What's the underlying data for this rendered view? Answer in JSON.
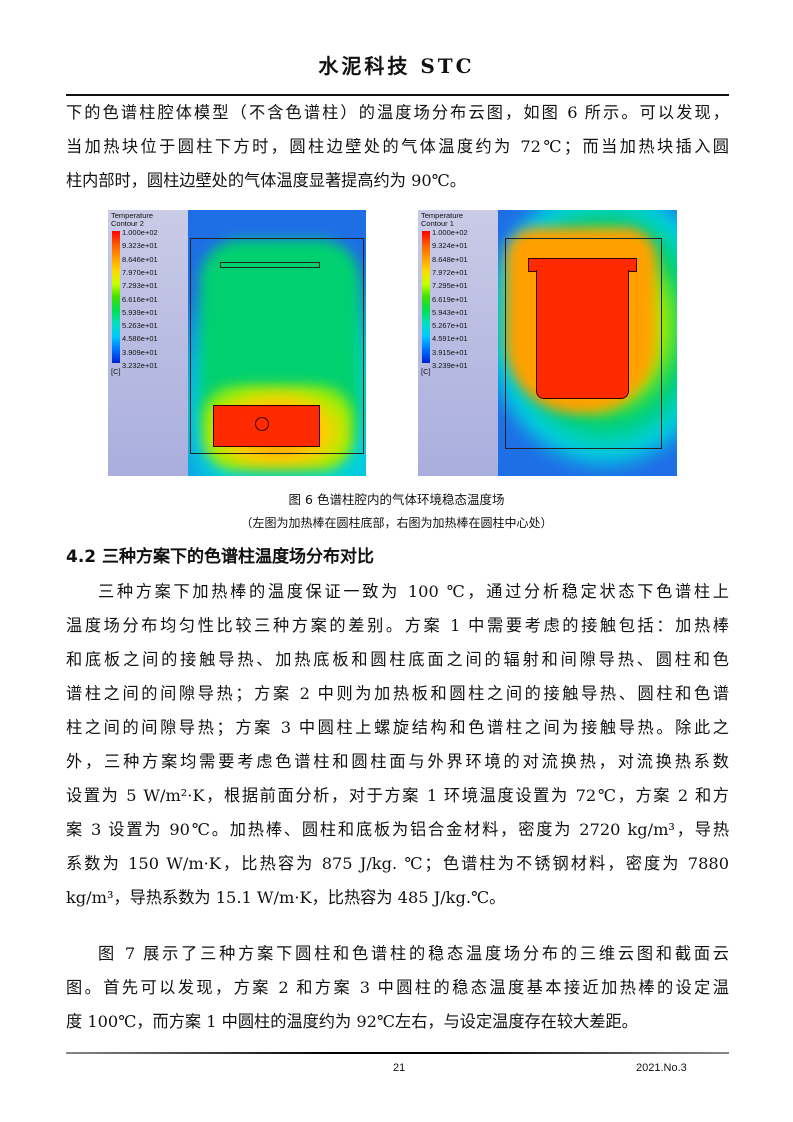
{
  "header": {
    "journal": "水泥科技 STC"
  },
  "para1": [
    "下的色谱柱腔体模型（不含色谱柱）的温度场分布云图，如图 6 所示。可以发现，",
    "当加热块位于圆柱下方时，圆柱边壁处的气体温度约为 72℃；而当加热块插入圆",
    "柱内部时，圆柱边壁处的气体温度显著提高约为 90℃。"
  ],
  "figure_left": {
    "legend_title": "Temperature",
    "legend_subtitle": "Contour 2",
    "values": [
      "1.000e+02",
      "9.323e+01",
      "8.646e+01",
      "7.970e+01",
      "7.293e+01",
      "6.616e+01",
      "5.939e+01",
      "5.263e+01",
      "4.586e+01",
      "3.909e+01",
      "3.232e+01"
    ],
    "unit": "[C]"
  },
  "figure_right": {
    "legend_title": "Temperature",
    "legend_subtitle": "Contour 1",
    "values": [
      "1.000e+02",
      "9.324e+01",
      "8.648e+01",
      "7.972e+01",
      "7.295e+01",
      "6.619e+01",
      "5.943e+01",
      "5.267e+01",
      "4.591e+01",
      "3.915e+01",
      "3.239e+01"
    ],
    "unit": "[C]"
  },
  "figure_caption": "图 6  色谱柱腔内的气体环境稳态温度场",
  "figure_subcaption": "（左图为加热棒在圆柱底部，右图为加热棒在圆柱中心处）",
  "section_title": "4.2  三种方案下的色谱柱温度场分布对比",
  "para2": [
    "三种方案下加热棒的温度保证一致为 100 ℃，通过分析稳定状态下色谱柱上",
    "温度场分布均匀性比较三种方案的差别。方案 1 中需要考虑的接触包括：加热棒",
    "和底板之间的接触导热、加热底板和圆柱底面之间的辐射和间隙导热、圆柱和色",
    "谱柱之间的间隙导热；方案 2 中则为加热板和圆柱之间的接触导热、圆柱和色谱",
    "柱之间的间隙导热；方案 3 中圆柱上螺旋结构和色谱柱之间为接触导热。除此之",
    "外，三种方案均需要考虑色谱柱和圆柱面与外界环境的对流换热，对流换热系数",
    "设置为 5 W/m²·K，根据前面分析，对于方案 1 环境温度设置为 72℃，方案 2 和方",
    "案 3 设置为 90℃。加热棒、圆柱和底板为铝合金材料，密度为 2720 kg/m³，导热",
    "系数为 150 W/m·K，比热容为 875 J/kg. ℃；色谱柱为不锈钢材料，密度为 7880",
    "kg/m³，导热系数为 15.1 W/m·K，比热容为 485 J/kg.℃。"
  ],
  "para3": [
    "图 7 展示了三种方案下圆柱和色谱柱的稳态温度场分布的三维云图和截面云",
    "图。首先可以发现，方案 2 和方案 3 中圆柱的稳态温度基本接近加热棒的设定温",
    "度 100℃，而方案 1 中圆柱的温度约为 92℃左右，与设定温度存在较大差距。"
  ],
  "footer": {
    "page": "21",
    "issue": "2021.No.3"
  }
}
